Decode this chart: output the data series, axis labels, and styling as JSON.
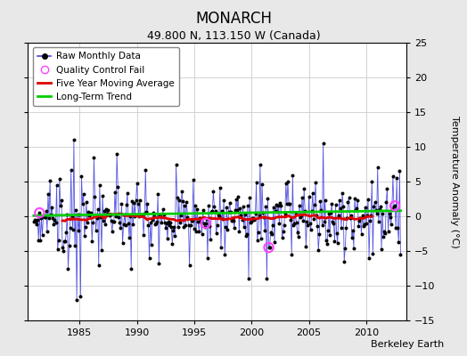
{
  "title": "MONARCH",
  "subtitle": "49.800 N, 113.150 W (Canada)",
  "ylabel": "Temperature Anomaly (°C)",
  "watermark": "Berkeley Earth",
  "ylim": [
    -15,
    25
  ],
  "yticks": [
    -15,
    -10,
    -5,
    0,
    5,
    10,
    15,
    20,
    25
  ],
  "xlim": [
    1980.5,
    2013.5
  ],
  "xticks": [
    1985,
    1990,
    1995,
    2000,
    2005,
    2010
  ],
  "fig_bg_color": "#e8e8e8",
  "plot_bg_color": "#ffffff",
  "grid_color": "#cccccc",
  "raw_line_color": "#4444dd",
  "raw_marker_color": "#000000",
  "moving_avg_color": "#dd0000",
  "trend_color": "#00cc00",
  "qc_fail_color": "#ff44ff",
  "legend_entries": [
    "Raw Monthly Data",
    "Quality Control Fail",
    "Five Year Moving Average",
    "Long-Term Trend"
  ],
  "title_fontsize": 12,
  "subtitle_fontsize": 9,
  "tick_fontsize": 8,
  "ylabel_fontsize": 8
}
